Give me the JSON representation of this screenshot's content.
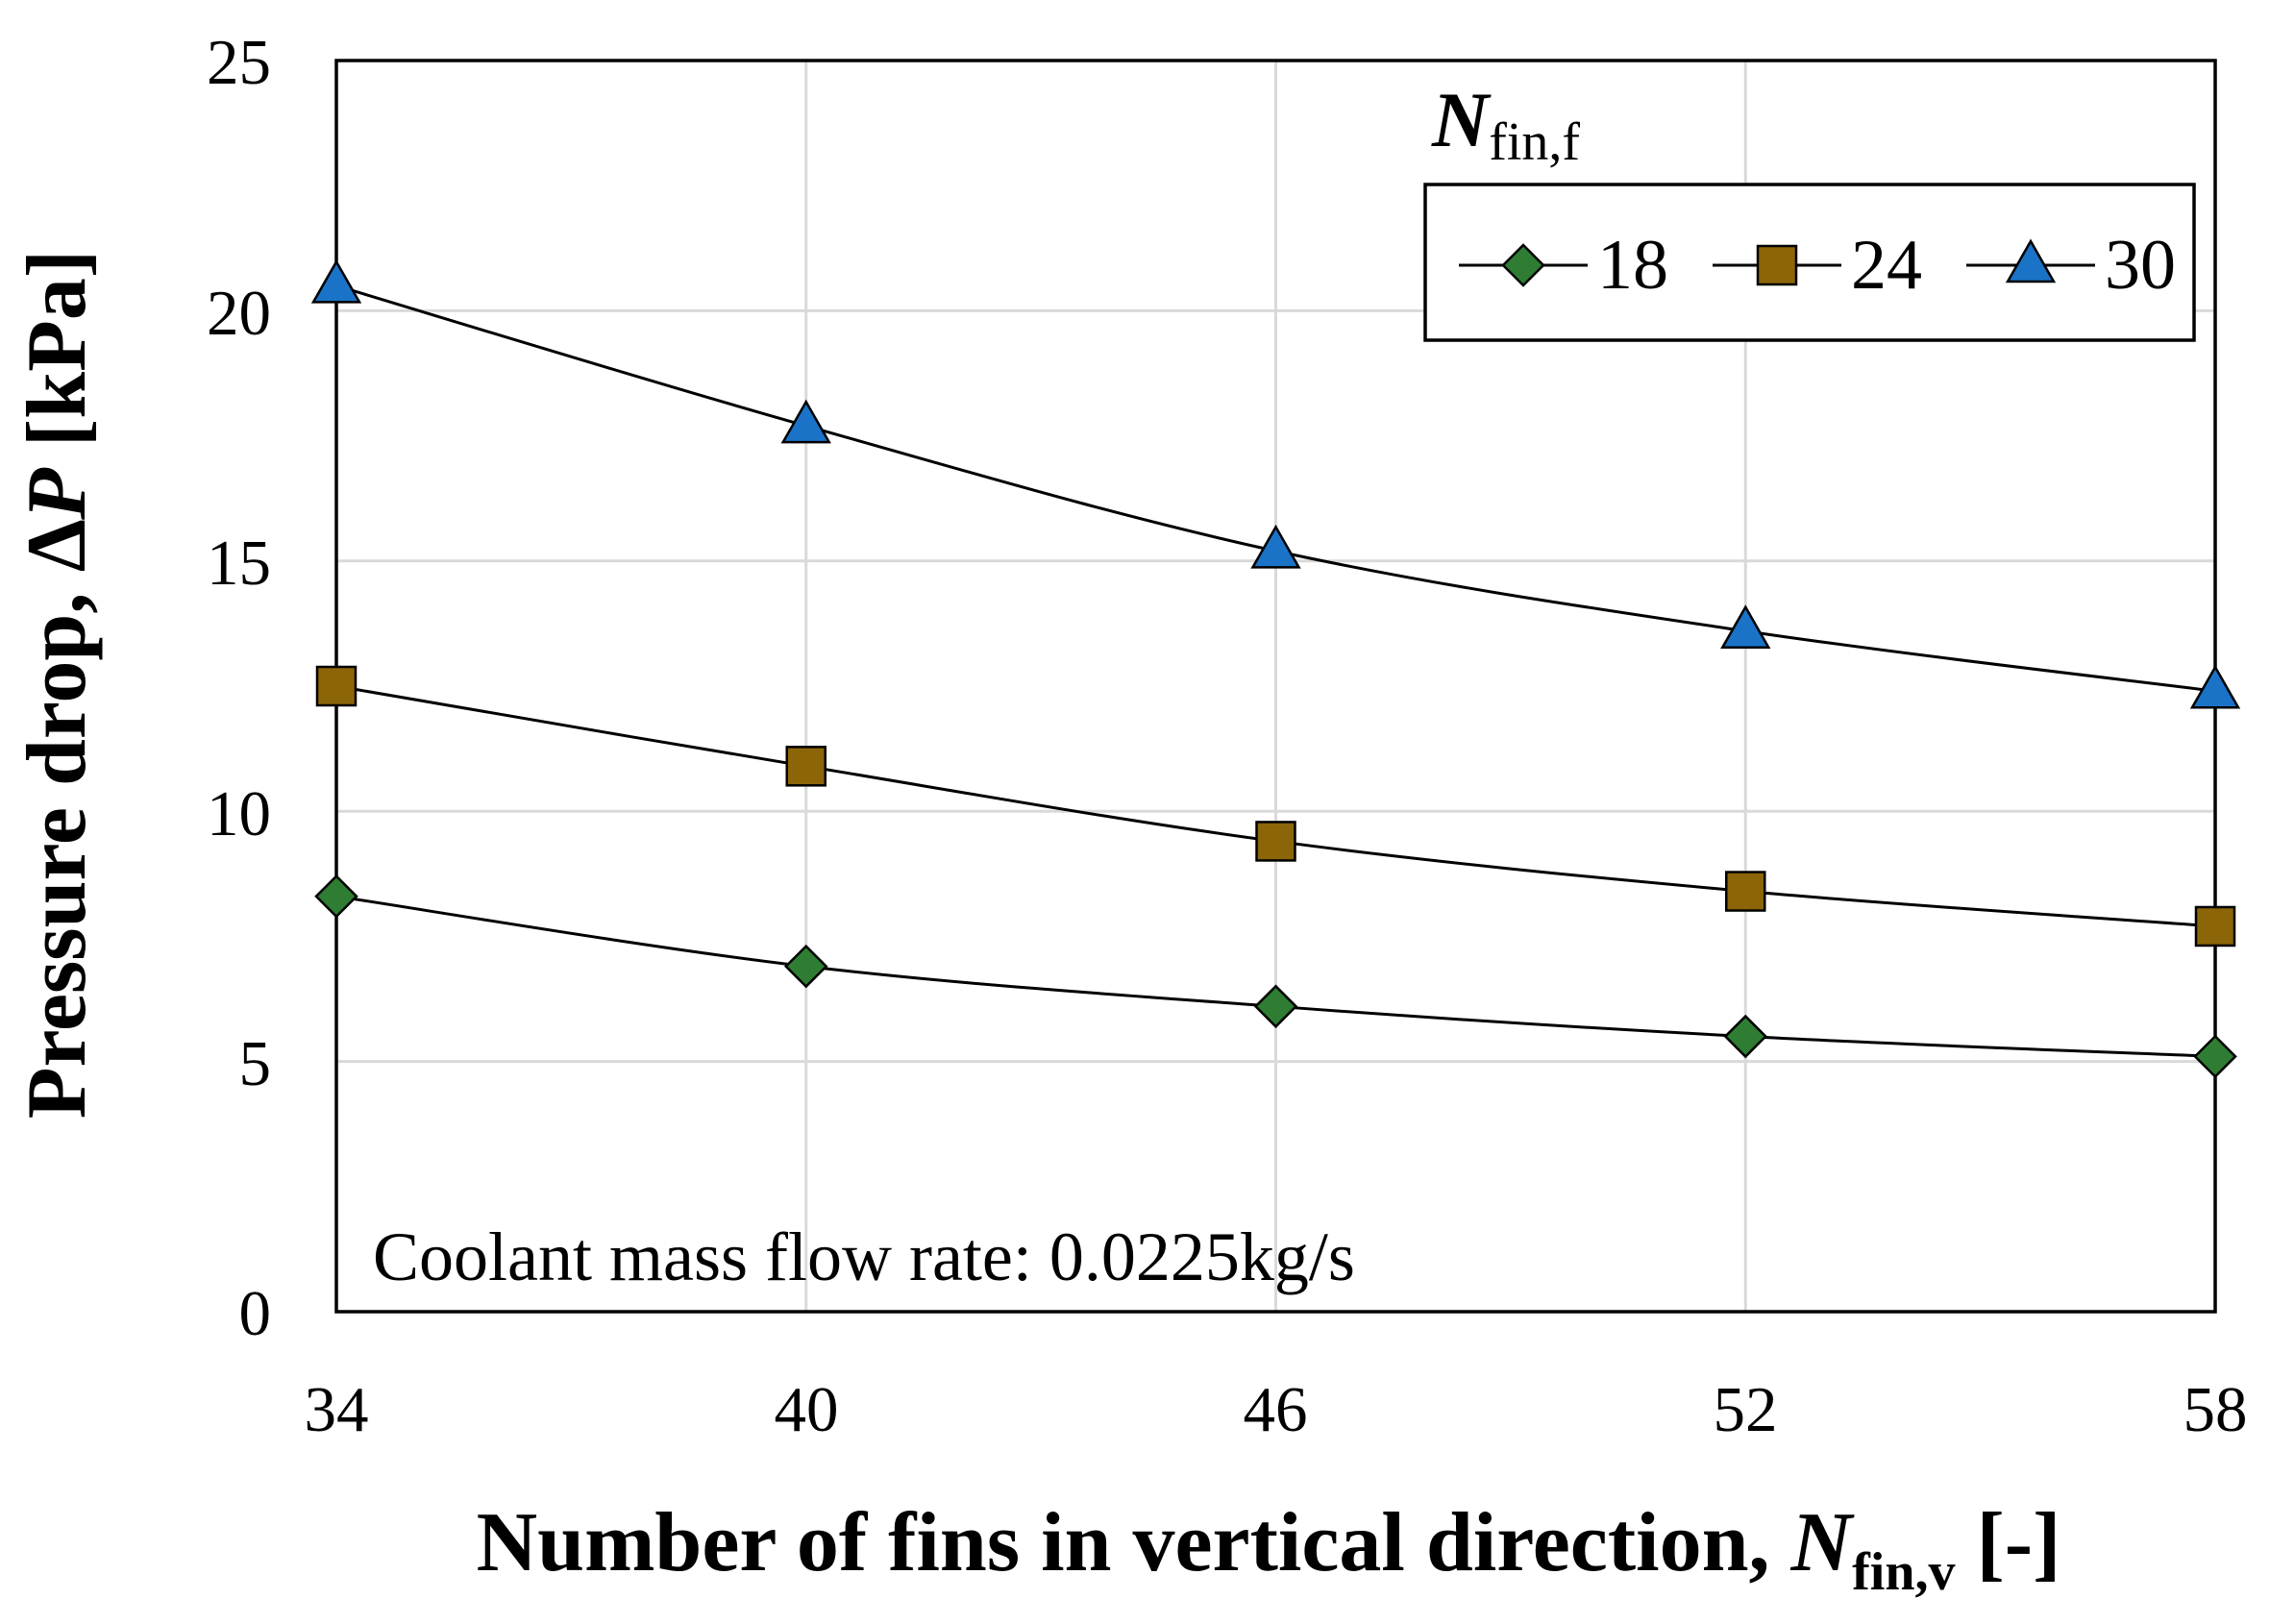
{
  "chart_data": {
    "type": "line",
    "x": [
      34,
      40,
      46,
      52,
      58
    ],
    "series": [
      {
        "name": "18",
        "values": [
          8.3,
          6.9,
          6.1,
          5.5,
          5.1
        ],
        "color": "#2e7d32",
        "marker": "diamond"
      },
      {
        "name": "24",
        "values": [
          12.5,
          10.9,
          9.4,
          8.4,
          7.7
        ],
        "color": "#8b6508",
        "marker": "square"
      },
      {
        "name": "30",
        "values": [
          20.5,
          17.7,
          15.2,
          13.6,
          12.4
        ],
        "color": "#1a73c7",
        "marker": "triangle"
      }
    ],
    "xlabel": {
      "main": "Number of fins in vertical direction, ",
      "symbol": "N",
      "sub": "fin,v",
      "unit": " [-]"
    },
    "ylabel": {
      "main": "Pressure drop, ∆",
      "symbol": "P",
      "unit": " [kPa]"
    },
    "legend_title": {
      "symbol": "N",
      "sub": "fin,f"
    },
    "legend_position": "top-right",
    "annotation": "Coolant mass flow rate: 0.0225kg/s",
    "xlim": [
      34,
      58
    ],
    "ylim": [
      0,
      25
    ],
    "x_ticks": [
      "34",
      "40",
      "46",
      "52",
      "58"
    ],
    "y_ticks": [
      "0",
      "5",
      "10",
      "15",
      "20",
      "25"
    ],
    "grid": true
  }
}
